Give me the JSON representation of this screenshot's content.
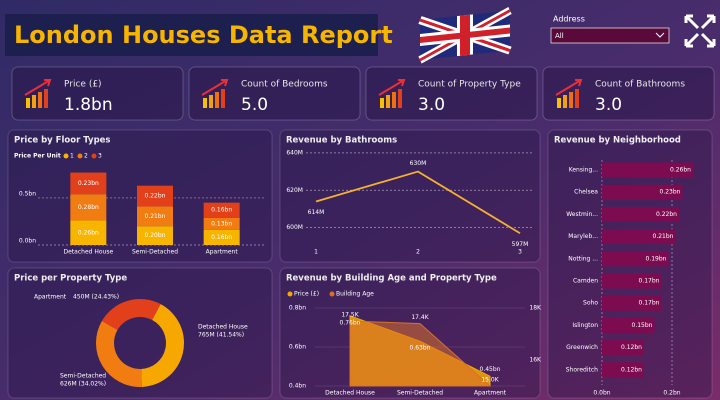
{
  "header": {
    "title": "London Houses Data Report"
  },
  "filter": {
    "label": "Address",
    "value": "All"
  },
  "cards": [
    {
      "label": "Price (£)",
      "value": "1.8bn"
    },
    {
      "label": "Count of Bedrooms",
      "value": "5.0"
    },
    {
      "label": "Count of Property Type",
      "value": "3.0"
    },
    {
      "label": "Count of Bathrooms",
      "value": "3.0"
    }
  ],
  "chart_data": [
    {
      "type": "stacked_bar",
      "title": "Price by Floor Types",
      "legend_title": "Price Per Unit",
      "categories": [
        "Detached House",
        "Semi-Detached",
        "Apartment"
      ],
      "series": [
        {
          "name": "1",
          "color": "#f7b500",
          "values": [
            0.26,
            0.2,
            0.16
          ],
          "value_labels": [
            "0.26bn",
            "0.20bn",
            "0.16bn"
          ]
        },
        {
          "name": "2",
          "color": "#f07c12",
          "values": [
            0.28,
            0.21,
            0.13
          ],
          "value_labels": [
            "0.28bn",
            "0.21bn",
            "0.13bn"
          ]
        },
        {
          "name": "3",
          "color": "#e2401a",
          "values": [
            0.23,
            0.22,
            0.16
          ],
          "value_labels": [
            "0.23bn",
            "0.22bn",
            "0.16bn"
          ]
        }
      ],
      "ylim": [
        0,
        0.85
      ],
      "yticks": [
        {
          "value": 0,
          "label": "0.0bn"
        },
        {
          "value": 0.5,
          "label": "0.5bn"
        }
      ],
      "grid": true
    },
    {
      "type": "line",
      "title": "Revenue by Bathrooms",
      "x": [
        1,
        2,
        3
      ],
      "values": [
        614,
        630,
        597
      ],
      "value_labels": [
        "614M",
        "630M",
        "597M"
      ],
      "color": "#f5b030",
      "xlim": [
        1,
        3
      ],
      "xticks": [
        1,
        2,
        3
      ],
      "ylim": [
        595,
        641
      ],
      "yticks": [
        {
          "value": 600,
          "label": "600M"
        },
        {
          "value": 620,
          "label": "620M"
        },
        {
          "value": 640,
          "label": "640M"
        }
      ],
      "grid": true
    },
    {
      "type": "donut",
      "title": "Price per Property Type",
      "categories": [
        "Apartment",
        "Detached House",
        "Semi-Detached"
      ],
      "values": [
        450,
        765,
        626
      ],
      "value_labels": [
        "450M (24.43%)",
        "765M (41.54%)",
        "626M (34.02%)"
      ],
      "colors": [
        "#e2401a",
        "#f7a800",
        "#f07c12"
      ]
    },
    {
      "type": "area_combo",
      "title": "Revenue by Building Age and Property Type",
      "categories": [
        "Detached House",
        "Semi-Detached",
        "Apartment"
      ],
      "series": [
        {
          "name": "Price (£)",
          "color": "#f7a800",
          "values": [
            0.76,
            0.63,
            0.45
          ],
          "value_labels": [
            "0.76bn",
            "0.63bn",
            "0.45bn"
          ]
        },
        {
          "name": "Building Age",
          "color": "#d9702a",
          "axis": "y2",
          "values": [
            17.5,
            17.4,
            15.0
          ],
          "value_labels": [
            "17.5K",
            "17.4K",
            "15.0K"
          ]
        }
      ],
      "ylim": [
        0.4,
        0.8
      ],
      "yticks": [
        {
          "value": 0.4,
          "label": "0.4bn"
        },
        {
          "value": 0.6,
          "label": "0.6bn"
        },
        {
          "value": 0.8,
          "label": "0.8bn"
        }
      ],
      "y2lim": [
        15,
        18
      ],
      "y2ticks": [
        {
          "value": 16,
          "label": "16K"
        },
        {
          "value": 18,
          "label": "18K"
        }
      ]
    },
    {
      "type": "hbar",
      "title": "Revenue by Neighborhood",
      "categories": [
        "Kensing...",
        "Chelsea",
        "Westmin...",
        "Maryleb...",
        "Notting ...",
        "Camden",
        "Soho",
        "Islington",
        "Greenwich",
        "Shoreditch"
      ],
      "values": [
        0.26,
        0.23,
        0.22,
        0.21,
        0.19,
        0.17,
        0.17,
        0.15,
        0.12,
        0.12
      ],
      "value_labels": [
        "0.26bn",
        "0.23bn",
        "0.22bn",
        "0.21bn",
        "0.19bn",
        "0.17bn",
        "0.17bn",
        "0.15bn",
        "0.12bn",
        "0.12bn"
      ],
      "color": "#7d0b50",
      "xlim": [
        0,
        0.3
      ],
      "xticks": [
        {
          "value": 0,
          "label": "0.0bn"
        },
        {
          "value": 0.2,
          "label": "0.2bn"
        }
      ]
    }
  ]
}
